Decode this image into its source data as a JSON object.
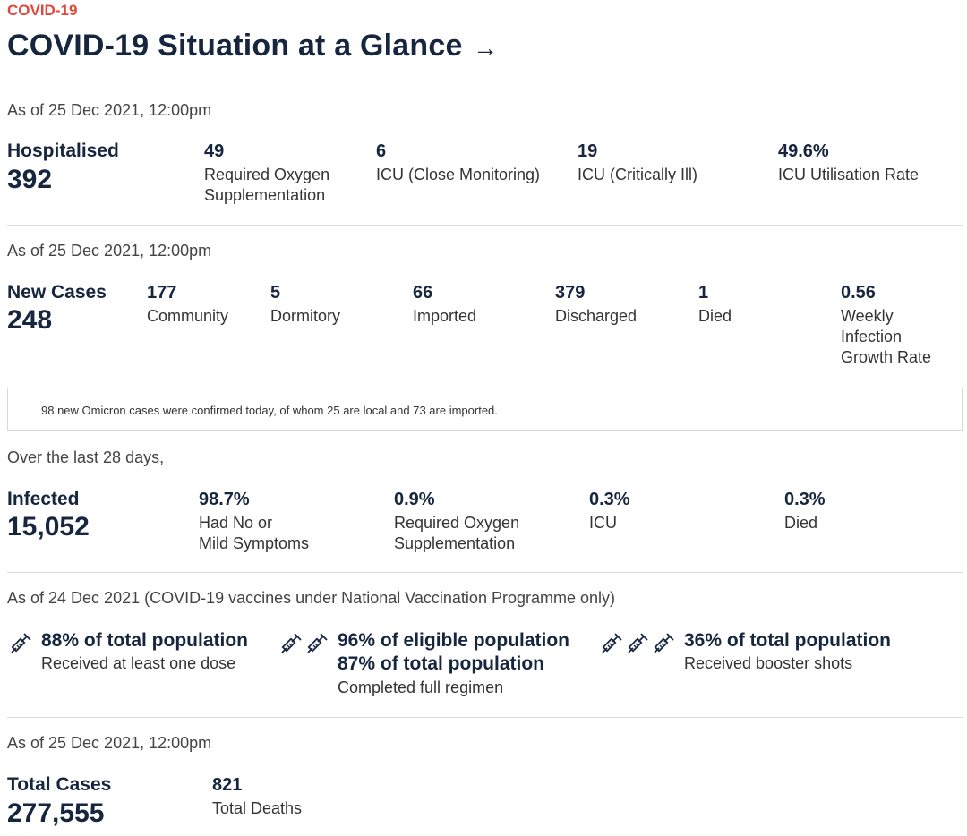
{
  "header": {
    "tag": "COVID-19",
    "title": "COVID-19 Situation at a Glance",
    "arrow": "→"
  },
  "hospital": {
    "as_of": "As of 25 Dec 2021, 12:00pm",
    "label": "Hospitalised",
    "total": "392",
    "stats": [
      {
        "value": "49",
        "label_line1": "Required Oxygen",
        "label_line2": "Supplementation"
      },
      {
        "value": "6",
        "label_line1": "ICU (Close Monitoring)"
      },
      {
        "value": "19",
        "label_line1": "ICU (Critically Ill)"
      },
      {
        "value": "49.6%",
        "label_line1": "ICU Utilisation Rate"
      }
    ]
  },
  "cases": {
    "as_of": "As of 25 Dec 2021, 12:00pm",
    "label": "New Cases",
    "total": "248",
    "stats": [
      {
        "value": "177",
        "label_line1": "Community"
      },
      {
        "value": "5",
        "label_line1": "Dormitory"
      },
      {
        "value": "66",
        "label_line1": "Imported"
      },
      {
        "value": "379",
        "label_line1": "Discharged"
      },
      {
        "value": "1",
        "label_line1": "Died"
      },
      {
        "value": "0.56",
        "label_line1": "Weekly",
        "label_line2": "Infection",
        "label_line3": "Growth Rate"
      }
    ],
    "note": "98 new Omicron cases were confirmed today, of whom 25 are local and 73 are imported."
  },
  "infected": {
    "as_of": "Over the last 28 days,",
    "label": "Infected",
    "total": "15,052",
    "stats": [
      {
        "value": "98.7%",
        "label_line1": "Had No or",
        "label_line2": "Mild Symptoms"
      },
      {
        "value": "0.9%",
        "label_line1": "Required Oxygen",
        "label_line2": "Supplementation"
      },
      {
        "value": "0.3%",
        "label_line1": "ICU"
      },
      {
        "value": "0.3%",
        "label_line1": "Died"
      }
    ]
  },
  "vaccination": {
    "as_of": "As of 24 Dec 2021 (COVID-19 vaccines under National Vaccination Programme only)",
    "items": [
      {
        "icon": "syringe-icon",
        "headline": "88% of total population",
        "label": "Received at least one dose"
      },
      {
        "icon": "syringe-icon",
        "headline": "96% of eligible population",
        "headline2": "87% of total population",
        "label": "Completed full regimen"
      },
      {
        "icon": "syringe-icon",
        "headline": "36% of total population",
        "label": "Received booster shots"
      }
    ]
  },
  "totals": {
    "as_of": "As of 25 Dec 2021, 12:00pm",
    "label": "Total Cases",
    "total": "277,555",
    "deaths_value": "821",
    "deaths_label": "Total Deaths"
  }
}
